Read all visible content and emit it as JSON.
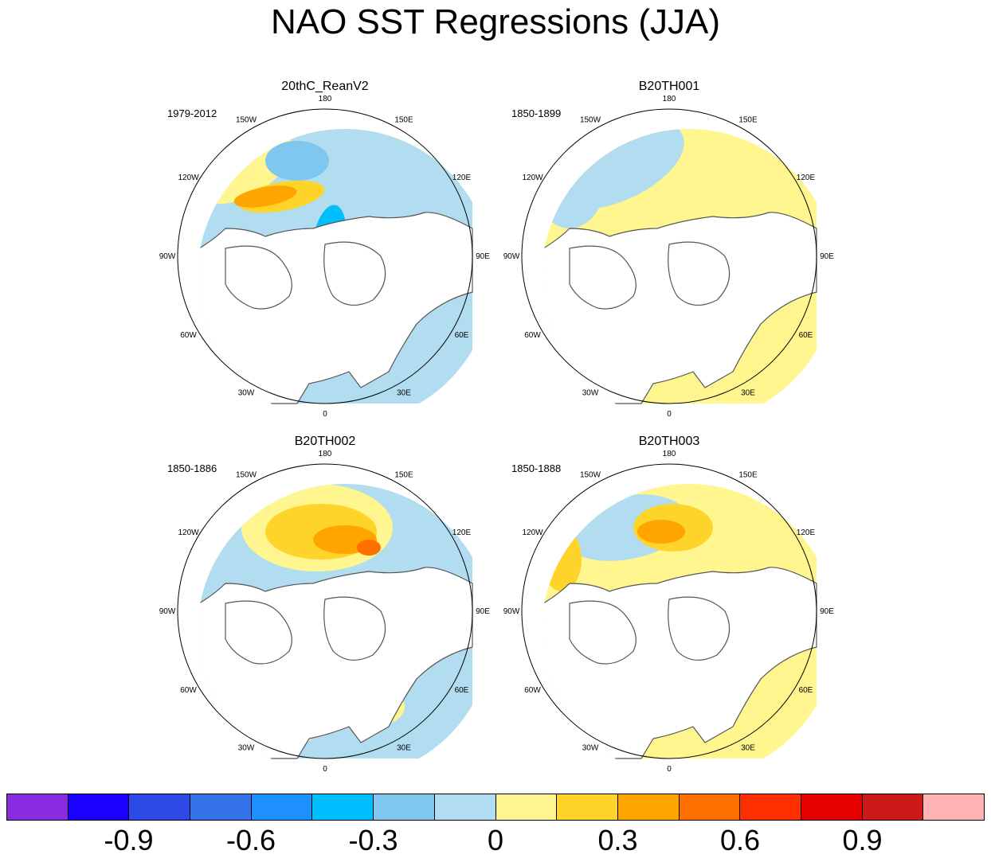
{
  "title": "NAO SST Regressions (JJA)",
  "longitude_labels": [
    "180",
    "150E",
    "120E",
    "90E",
    "60E",
    "30E",
    "0",
    "30W",
    "60W",
    "90W",
    "120W",
    "150W"
  ],
  "panels": [
    {
      "name": "20thC_ReanV2",
      "period": "1979-2012"
    },
    {
      "name": "B20TH001",
      "period": "1850-1899"
    },
    {
      "name": "B20TH002",
      "period": "1850-1886"
    },
    {
      "name": "B20TH003",
      "period": "1850-1888"
    }
  ],
  "colorbar": {
    "colors": [
      "#8a2be2",
      "#1a00ff",
      "#2e4ae6",
      "#3574e8",
      "#1e90ff",
      "#00bfff",
      "#7ec8f0",
      "#b2dcf0",
      "#fff68f",
      "#ffd42a",
      "#ffa500",
      "#ff7000",
      "#ff3000",
      "#e60000",
      "#cc1a1a",
      "#ffb3b3"
    ],
    "labels": [
      "-0.9",
      "-0.6",
      "-0.3",
      "0",
      "0.3",
      "0.6",
      "0.9"
    ]
  }
}
